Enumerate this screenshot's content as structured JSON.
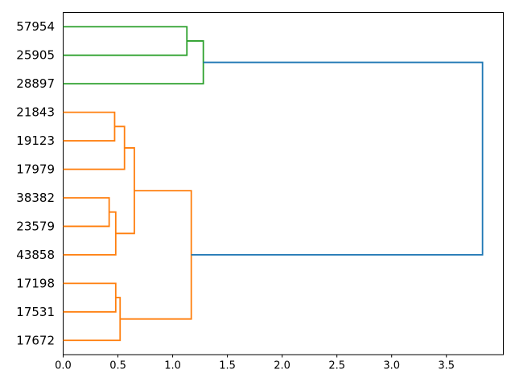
{
  "chart_data": {
    "type": "dendrogram",
    "orientation": "right",
    "title": "",
    "xlabel": "",
    "ylabel": "",
    "grid": false,
    "legend": null,
    "leaves": [
      "57954",
      "25905",
      "28897",
      "21843",
      "19123",
      "17979",
      "38382",
      "23579",
      "43858",
      "17198",
      "17531",
      "17672"
    ],
    "links": [
      {
        "id": "g1",
        "a": "57954",
        "b": "25905",
        "h": 1.13,
        "color": "C2"
      },
      {
        "id": "g2",
        "a": "g1",
        "b": "28897",
        "h": 1.28,
        "color": "C2"
      },
      {
        "id": "o1",
        "a": "21843",
        "b": "19123",
        "h": 0.47,
        "color": "C1"
      },
      {
        "id": "o2",
        "a": "o1",
        "b": "17979",
        "h": 0.56,
        "color": "C1"
      },
      {
        "id": "o3",
        "a": "38382",
        "b": "23579",
        "h": 0.42,
        "color": "C1"
      },
      {
        "id": "o4",
        "a": "o3",
        "b": "43858",
        "h": 0.48,
        "color": "C1"
      },
      {
        "id": "o5",
        "a": "o2",
        "b": "o4",
        "h": 0.65,
        "color": "C1"
      },
      {
        "id": "o6",
        "a": "17198",
        "b": "17531",
        "h": 0.48,
        "color": "C1"
      },
      {
        "id": "o7",
        "a": "o6",
        "b": "17672",
        "h": 0.52,
        "color": "C1"
      },
      {
        "id": "o8",
        "a": "o5",
        "b": "o7",
        "h": 1.17,
        "color": "C1"
      },
      {
        "id": "root",
        "a": "g2",
        "b": "o8",
        "h": 3.83,
        "color": "C0"
      }
    ],
    "colors": {
      "C0": "#1f77b4",
      "C1": "#ff7f0e",
      "C2": "#2ca02c",
      "spine": "#000000"
    },
    "x_ticks": [
      "0.0",
      "0.5",
      "1.0",
      "1.5",
      "2.0",
      "2.5",
      "3.0",
      "3.5"
    ],
    "xlim": [
      0,
      4.02
    ],
    "legend_position": "none"
  }
}
